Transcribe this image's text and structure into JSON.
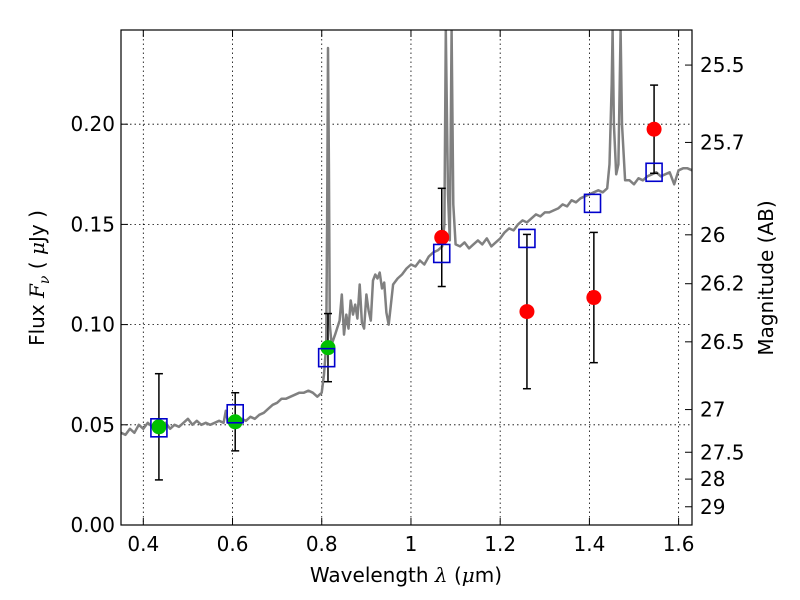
{
  "chart_data": {
    "type": "scatter",
    "title": "",
    "xlabel": "Wavelength  λ (μm)",
    "ylabel": "Flux  Fν  ( μJy )",
    "y2label": "Magnitude (AB)",
    "xlim": [
      0.35,
      1.63
    ],
    "ylim": [
      0.0,
      0.247
    ],
    "grid": true,
    "colors": {
      "spectrum": "#808080",
      "green_points": "#00c000",
      "red_points": "#ff0000",
      "model_boxes": "#0000cc",
      "errorbars": "#000000"
    },
    "x_ticks": [
      {
        "value": 0.4,
        "label": "0.4"
      },
      {
        "value": 0.6,
        "label": "0.6"
      },
      {
        "value": 0.8,
        "label": "0.8"
      },
      {
        "value": 1.0,
        "label": "1"
      },
      {
        "value": 1.2,
        "label": "1.2"
      },
      {
        "value": 1.4,
        "label": "1.4"
      },
      {
        "value": 1.6,
        "label": "1.6"
      }
    ],
    "y_ticks": [
      {
        "value": 0.0,
        "label": "0.00"
      },
      {
        "value": 0.05,
        "label": "0.05"
      },
      {
        "value": 0.1,
        "label": "0.10"
      },
      {
        "value": 0.15,
        "label": "0.15"
      },
      {
        "value": 0.2,
        "label": "0.20"
      }
    ],
    "y2_ticks": [
      {
        "label": "25.5",
        "flux": 0.2295
      },
      {
        "label": "25.7",
        "flux": 0.1909
      },
      {
        "label": "26",
        "flux": 0.1448
      },
      {
        "label": "26.2",
        "flux": 0.1204
      },
      {
        "label": "26.5",
        "flux": 0.0914
      },
      {
        "label": "27",
        "flux": 0.0576
      },
      {
        "label": "27.5",
        "flux": 0.0363
      },
      {
        "label": "28",
        "flux": 0.0229
      },
      {
        "label": "29",
        "flux": 0.0091
      }
    ],
    "spectrum": {
      "name": "",
      "points": [
        [
          0.35,
          0.046
        ],
        [
          0.36,
          0.045
        ],
        [
          0.37,
          0.048
        ],
        [
          0.38,
          0.046
        ],
        [
          0.39,
          0.05
        ],
        [
          0.4,
          0.048
        ],
        [
          0.41,
          0.051
        ],
        [
          0.42,
          0.049
        ],
        [
          0.43,
          0.048
        ],
        [
          0.44,
          0.049
        ],
        [
          0.45,
          0.051
        ],
        [
          0.46,
          0.048
        ],
        [
          0.47,
          0.05
        ],
        [
          0.48,
          0.049
        ],
        [
          0.49,
          0.051
        ],
        [
          0.5,
          0.053
        ],
        [
          0.51,
          0.05
        ],
        [
          0.52,
          0.052
        ],
        [
          0.53,
          0.05
        ],
        [
          0.54,
          0.051
        ],
        [
          0.55,
          0.05
        ],
        [
          0.56,
          0.051
        ],
        [
          0.57,
          0.052
        ],
        [
          0.58,
          0.051
        ],
        [
          0.585,
          0.057
        ],
        [
          0.59,
          0.051
        ],
        [
          0.6,
          0.052
        ],
        [
          0.61,
          0.051
        ],
        [
          0.62,
          0.053
        ],
        [
          0.63,
          0.052
        ],
        [
          0.64,
          0.054
        ],
        [
          0.65,
          0.053
        ],
        [
          0.66,
          0.055
        ],
        [
          0.67,
          0.056
        ],
        [
          0.68,
          0.058
        ],
        [
          0.69,
          0.06
        ],
        [
          0.7,
          0.061
        ],
        [
          0.71,
          0.063
        ],
        [
          0.72,
          0.063
        ],
        [
          0.73,
          0.064
        ],
        [
          0.74,
          0.065
        ],
        [
          0.75,
          0.066
        ],
        [
          0.76,
          0.066
        ],
        [
          0.77,
          0.067
        ],
        [
          0.78,
          0.066
        ],
        [
          0.79,
          0.064
        ],
        [
          0.8,
          0.066
        ],
        [
          0.805,
          0.075
        ],
        [
          0.81,
          0.09
        ],
        [
          0.812,
          0.15
        ],
        [
          0.814,
          0.238
        ],
        [
          0.816,
          0.18
        ],
        [
          0.818,
          0.1
        ],
        [
          0.822,
          0.09
        ],
        [
          0.83,
          0.095
        ],
        [
          0.84,
          0.102
        ],
        [
          0.845,
          0.115
        ],
        [
          0.85,
          0.095
        ],
        [
          0.855,
          0.105
        ],
        [
          0.86,
          0.098
        ],
        [
          0.865,
          0.112
        ],
        [
          0.87,
          0.105
        ],
        [
          0.875,
          0.11
        ],
        [
          0.88,
          0.103
        ],
        [
          0.885,
          0.12
        ],
        [
          0.89,
          0.101
        ],
        [
          0.895,
          0.098
        ],
        [
          0.9,
          0.115
        ],
        [
          0.905,
          0.107
        ],
        [
          0.91,
          0.102
        ],
        [
          0.915,
          0.122
        ],
        [
          0.92,
          0.125
        ],
        [
          0.925,
          0.123
        ],
        [
          0.93,
          0.126
        ],
        [
          0.935,
          0.118
        ],
        [
          0.94,
          0.121
        ],
        [
          0.945,
          0.106
        ],
        [
          0.95,
          0.1
        ],
        [
          0.955,
          0.11
        ],
        [
          0.96,
          0.12
        ],
        [
          0.97,
          0.123
        ],
        [
          0.98,
          0.125
        ],
        [
          0.99,
          0.128
        ],
        [
          1.0,
          0.13
        ],
        [
          1.01,
          0.129
        ],
        [
          1.02,
          0.132
        ],
        [
          1.03,
          0.13
        ],
        [
          1.04,
          0.134
        ],
        [
          1.05,
          0.136
        ],
        [
          1.06,
          0.137
        ],
        [
          1.07,
          0.139
        ],
        [
          1.075,
          0.15
        ],
        [
          1.078,
          0.247
        ],
        [
          1.083,
          0.165
        ],
        [
          1.087,
          0.142
        ],
        [
          1.091,
          0.247
        ],
        [
          1.095,
          0.16
        ],
        [
          1.1,
          0.14
        ],
        [
          1.11,
          0.139
        ],
        [
          1.12,
          0.141
        ],
        [
          1.13,
          0.138
        ],
        [
          1.14,
          0.14
        ],
        [
          1.15,
          0.142
        ],
        [
          1.16,
          0.14
        ],
        [
          1.17,
          0.143
        ],
        [
          1.18,
          0.139
        ],
        [
          1.19,
          0.141
        ],
        [
          1.2,
          0.143
        ],
        [
          1.21,
          0.146
        ],
        [
          1.22,
          0.148
        ],
        [
          1.23,
          0.147
        ],
        [
          1.24,
          0.15
        ],
        [
          1.25,
          0.152
        ],
        [
          1.26,
          0.151
        ],
        [
          1.27,
          0.153
        ],
        [
          1.28,
          0.155
        ],
        [
          1.29,
          0.154
        ],
        [
          1.3,
          0.156
        ],
        [
          1.31,
          0.156
        ],
        [
          1.32,
          0.157
        ],
        [
          1.33,
          0.158
        ],
        [
          1.34,
          0.16
        ],
        [
          1.35,
          0.159
        ],
        [
          1.36,
          0.162
        ],
        [
          1.37,
          0.161
        ],
        [
          1.38,
          0.163
        ],
        [
          1.39,
          0.164
        ],
        [
          1.4,
          0.165
        ],
        [
          1.41,
          0.166
        ],
        [
          1.42,
          0.167
        ],
        [
          1.43,
          0.166
        ],
        [
          1.44,
          0.168
        ],
        [
          1.445,
          0.18
        ],
        [
          1.45,
          0.22
        ],
        [
          1.452,
          0.247
        ],
        [
          1.455,
          0.2
        ],
        [
          1.46,
          0.175
        ],
        [
          1.465,
          0.18
        ],
        [
          1.47,
          0.247
        ],
        [
          1.473,
          0.2
        ],
        [
          1.48,
          0.172
        ],
        [
          1.49,
          0.172
        ],
        [
          1.5,
          0.17
        ],
        [
          1.51,
          0.173
        ],
        [
          1.52,
          0.172
        ],
        [
          1.53,
          0.174
        ],
        [
          1.54,
          0.175
        ],
        [
          1.55,
          0.176
        ],
        [
          1.56,
          0.174
        ],
        [
          1.57,
          0.175
        ],
        [
          1.58,
          0.176
        ],
        [
          1.59,
          0.17
        ],
        [
          1.6,
          0.177
        ],
        [
          1.61,
          0.178
        ],
        [
          1.62,
          0.178
        ],
        [
          1.63,
          0.177
        ]
      ]
    },
    "series": [
      {
        "name": "",
        "marker": "circle",
        "color": "#00c000",
        "points": [
          {
            "x": 0.435,
            "y": 0.049,
            "err": 0.0265
          },
          {
            "x": 0.606,
            "y": 0.0515,
            "err": 0.0145
          },
          {
            "x": 0.814,
            "y": 0.0885,
            "err": 0.017
          }
        ]
      },
      {
        "name": "",
        "marker": "circle",
        "color": "#ff0000",
        "points": [
          {
            "x": 1.069,
            "y": 0.1435,
            "err": 0.0245
          },
          {
            "x": 1.26,
            "y": 0.1065,
            "err": 0.0385
          },
          {
            "x": 1.41,
            "y": 0.1135,
            "err": 0.0325
          },
          {
            "x": 1.545,
            "y": 0.1975,
            "err": 0.022
          }
        ]
      },
      {
        "name": "",
        "marker": "square",
        "color": "#0000cc",
        "points": [
          {
            "x": 0.435,
            "y": 0.0485
          },
          {
            "x": 0.606,
            "y": 0.0555
          },
          {
            "x": 0.811,
            "y": 0.0835
          },
          {
            "x": 1.069,
            "y": 0.1355
          },
          {
            "x": 1.26,
            "y": 0.143
          },
          {
            "x": 1.407,
            "y": 0.1605
          },
          {
            "x": 1.545,
            "y": 0.176
          }
        ]
      }
    ]
  }
}
